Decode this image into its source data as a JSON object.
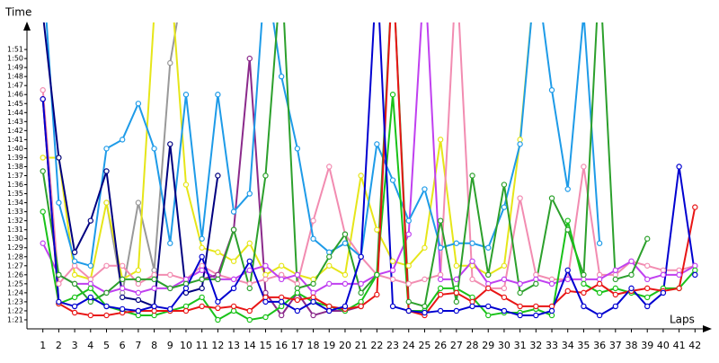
{
  "chart_data": {
    "type": "line",
    "y_label": "Time",
    "x_label": "Laps",
    "x": [
      1,
      2,
      3,
      4,
      5,
      6,
      7,
      8,
      9,
      10,
      11,
      12,
      13,
      14,
      15,
      16,
      17,
      18,
      19,
      20,
      21,
      22,
      23,
      24,
      25,
      26,
      27,
      28,
      29,
      30,
      31,
      32,
      33,
      34,
      35,
      36,
      37,
      38,
      39,
      40,
      41,
      42
    ],
    "xlim": [
      0,
      43
    ],
    "xticks": [
      1,
      2,
      3,
      4,
      5,
      6,
      7,
      8,
      9,
      10,
      11,
      12,
      13,
      14,
      15,
      16,
      17,
      18,
      19,
      20,
      21,
      22,
      23,
      24,
      25,
      26,
      27,
      28,
      29,
      30,
      31,
      32,
      33,
      34,
      35,
      36,
      37,
      38,
      39,
      40,
      41,
      42
    ],
    "ylim": [
      80,
      114
    ],
    "yticks": [
      {
        "value": 81,
        "label": "1:21"
      },
      {
        "value": 82,
        "label": "1:22"
      },
      {
        "value": 83,
        "label": "1:23"
      },
      {
        "value": 84,
        "label": "1:24"
      },
      {
        "value": 85,
        "label": "1:25"
      },
      {
        "value": 86,
        "label": "1:26"
      },
      {
        "value": 87,
        "label": "1:27"
      },
      {
        "value": 88,
        "label": "1:28"
      },
      {
        "value": 89,
        "label": "1:29"
      },
      {
        "value": 90,
        "label": "1:30"
      },
      {
        "value": 91,
        "label": "1:31"
      },
      {
        "value": 92,
        "label": "1:32"
      },
      {
        "value": 93,
        "label": "1:33"
      },
      {
        "value": 94,
        "label": "1:34"
      },
      {
        "value": 95,
        "label": "1:35"
      },
      {
        "value": 96,
        "label": "1:36"
      },
      {
        "value": 97,
        "label": "1:37"
      },
      {
        "value": 98,
        "label": "1:38"
      },
      {
        "value": 99,
        "label": "1:39"
      },
      {
        "value": 100,
        "label": "1:40"
      },
      {
        "value": 101,
        "label": "1:41"
      },
      {
        "value": 102,
        "label": "1:42"
      },
      {
        "value": 103,
        "label": "1:43"
      },
      {
        "value": 104,
        "label": "1:44"
      },
      {
        "value": 105,
        "label": "1:45"
      },
      {
        "value": 106,
        "label": "1:46"
      },
      {
        "value": 107,
        "label": "1:47"
      },
      {
        "value": 108,
        "label": "1:48"
      },
      {
        "value": 109,
        "label": "1:49"
      },
      {
        "value": 110,
        "label": "1:50"
      },
      {
        "value": 111,
        "label": "1:51"
      }
    ],
    "series": [
      {
        "color": "#999999",
        "values": [
          null,
          null,
          null,
          null,
          94,
          84,
          94,
          86.5,
          109.5,
          120,
          null,
          null,
          null,
          null,
          null,
          null,
          null,
          null,
          null,
          null,
          null,
          null,
          null,
          null,
          null,
          null,
          null,
          null,
          null,
          null,
          null,
          null,
          null,
          null,
          null,
          null,
          null,
          null,
          null,
          null,
          null,
          null
        ]
      },
      {
        "color": "#e6e619",
        "values": [
          99,
          99,
          86,
          85.5,
          94,
          85.5,
          86.5,
          115,
          120,
          96,
          89,
          88.5,
          87.5,
          89.5,
          86,
          87,
          86,
          85.5,
          87,
          86,
          97,
          91,
          87.5,
          87,
          89,
          101,
          87,
          87,
          86,
          87,
          101,
          120,
          null,
          null,
          null,
          null,
          null,
          null,
          null,
          null,
          null,
          null
        ]
      },
      {
        "color": "#f28cb1",
        "values": [
          106.5,
          85,
          87,
          85.5,
          87,
          87,
          85,
          86,
          86,
          85.5,
          87,
          86,
          85.5,
          85,
          85.5,
          86,
          85,
          92,
          98,
          90.5,
          88,
          86,
          85.5,
          85,
          85.5,
          86,
          120,
          85.5,
          84.5,
          84.5,
          94.5,
          86,
          85.5,
          85.5,
          98,
          86,
          86,
          87.5,
          87,
          86.5,
          86.5,
          87
        ]
      },
      {
        "color": "#c040f0",
        "values": [
          89.5,
          86,
          85,
          85,
          84,
          84.5,
          84,
          84.5,
          84.5,
          85.5,
          86.5,
          85.5,
          85.5,
          86.5,
          87,
          85.5,
          86,
          84,
          85,
          85,
          85,
          86,
          86.5,
          90.5,
          120,
          85.5,
          85.5,
          87.5,
          85,
          85.5,
          85,
          85.5,
          85,
          85.5,
          85.5,
          85.5,
          86.5,
          87.5,
          85.5,
          86,
          86,
          87
        ]
      },
      {
        "color": "#8b2a8b",
        "values": [
          null,
          null,
          null,
          null,
          null,
          null,
          null,
          null,
          null,
          null,
          85.5,
          86,
          91,
          110,
          84,
          81.5,
          84,
          81.5,
          82,
          82,
          82.5,
          null,
          null,
          null,
          null,
          null,
          null,
          null,
          null,
          null,
          null,
          null,
          null,
          null,
          null,
          null,
          null,
          null,
          null,
          null,
          null,
          null
        ]
      },
      {
        "color": "#1e9be8",
        "values": [
          120,
          94,
          87.5,
          87,
          100,
          101,
          105,
          100,
          89.5,
          106,
          90,
          106,
          93,
          95,
          120,
          108,
          100,
          90,
          88.5,
          89.5,
          88,
          100.5,
          96.5,
          92,
          95.5,
          89,
          89.5,
          89.5,
          89,
          93.5,
          100.5,
          120,
          106.5,
          95.5,
          115,
          89.5,
          null,
          null,
          null,
          null,
          null,
          null
        ]
      },
      {
        "color": "#2ca02c",
        "values": [
          97.5,
          86,
          85,
          83,
          84,
          85.5,
          85.5,
          85.5,
          84.5,
          85,
          85.5,
          85.5,
          91,
          84.5,
          97,
          120,
          84.5,
          85,
          88,
          90.5,
          84,
          86,
          120,
          83,
          82.5,
          92,
          83,
          97,
          86,
          96,
          84,
          85,
          94.5,
          91,
          86,
          120,
          85.5,
          86,
          90,
          null,
          null,
          null
        ]
      },
      {
        "color": "#19c219",
        "values": [
          93,
          82.8,
          83.5,
          84.5,
          82.5,
          82,
          81.5,
          81.5,
          82,
          82.5,
          83.5,
          81,
          82,
          81,
          81.3,
          82.5,
          84,
          83,
          82.5,
          82,
          83,
          86,
          106,
          82,
          82,
          84.5,
          84.5,
          83.5,
          81.5,
          81.8,
          81.8,
          82.2,
          81.5,
          92,
          85,
          84,
          84.5,
          84,
          83.5,
          84.5,
          84.5,
          86.5
        ]
      },
      {
        "color": "#e81515",
        "values": [
          105.5,
          82.8,
          81.8,
          81.5,
          81.5,
          81.8,
          82,
          82,
          82,
          82,
          82.5,
          82.3,
          82.5,
          82,
          83.5,
          83.5,
          83.2,
          83.5,
          82.5,
          82.2,
          82.5,
          83.8,
          120,
          82,
          81.5,
          83.8,
          84,
          83,
          84.5,
          83.5,
          82.5,
          82.5,
          82.5,
          84.2,
          84,
          85,
          83.8,
          84.2,
          84.5,
          84.2,
          84.5,
          93.5
        ]
      },
      {
        "color": "#000080",
        "values": [
          115,
          99,
          88.5,
          92,
          97.5,
          83.5,
          83.2,
          82.5,
          100.5,
          84,
          84.5,
          97,
          null,
          null,
          null,
          null,
          null,
          null,
          null,
          null,
          null,
          null,
          null,
          null,
          null,
          null,
          null,
          null,
          null,
          null,
          null,
          null,
          null,
          null,
          null,
          null,
          null,
          null,
          null,
          null,
          null,
          null
        ]
      },
      {
        "color": "#0000d0",
        "values": [
          105.5,
          83,
          82.5,
          83.5,
          82.5,
          82.2,
          82,
          82.5,
          82.2,
          84.5,
          88,
          83,
          84.5,
          87.5,
          83,
          83,
          82,
          83,
          82,
          82.5,
          88,
          120,
          82.5,
          82,
          81.8,
          82,
          82,
          82.5,
          82.5,
          82,
          81.5,
          81.5,
          82,
          86.5,
          82.5,
          81.5,
          82.5,
          84.5,
          82.5,
          84,
          98,
          86
        ]
      }
    ]
  }
}
